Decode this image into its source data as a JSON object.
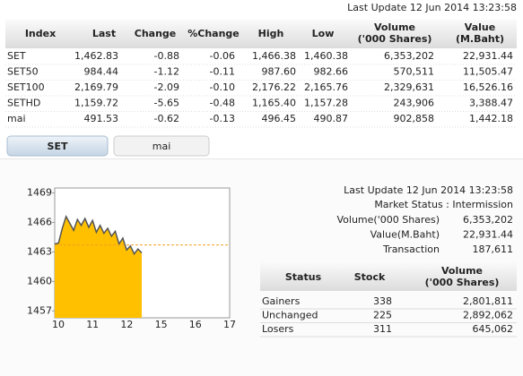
{
  "header": {
    "last_update": "Last Update 12 Jun 2014 13:23:58"
  },
  "table": {
    "columns": [
      [
        "Index"
      ],
      [
        "Last"
      ],
      [
        "Change"
      ],
      [
        "%Change"
      ],
      [
        "High"
      ],
      [
        "Low"
      ],
      [
        "Volume",
        "('000 Shares)"
      ],
      [
        "Value",
        "(M.Baht)"
      ]
    ],
    "rows": [
      [
        "SET",
        "1,462.83",
        "-0.88",
        "-0.06",
        "1,466.38",
        "1,460.38",
        "6,353,202",
        "22,931.44"
      ],
      [
        "SET50",
        "984.44",
        "-1.12",
        "-0.11",
        "987.60",
        "982.66",
        "570,511",
        "11,505.47"
      ],
      [
        "SET100",
        "2,169.79",
        "-2.09",
        "-0.10",
        "2,176.22",
        "2,165.76",
        "2,329,631",
        "16,526.16"
      ],
      [
        "SETHD",
        "1,159.72",
        "-5.65",
        "-0.48",
        "1,165.40",
        "1,157.28",
        "243,906",
        "3,388.47"
      ],
      [
        "mai",
        "491.53",
        "-0.62",
        "-0.13",
        "496.45",
        "490.87",
        "902,858",
        "1,442.18"
      ]
    ]
  },
  "tabs": [
    "SET",
    "mai"
  ],
  "chart": {
    "type": "area",
    "color": "#ffc000",
    "line_color": "#555555",
    "values": [
      1463.8,
      1463.9,
      1465.4,
      1466.6,
      1465.9,
      1465.2,
      1466.3,
      1465.7,
      1466.4,
      1465.5,
      1466.2,
      1465.0,
      1465.7,
      1464.9,
      1465.4,
      1464.6,
      1465.1,
      1463.8,
      1464.4,
      1463.2,
      1463.6,
      1462.8,
      1463.3,
      1462.9
    ],
    "previous_close": 1463.71,
    "ylim": [
      1456.3,
      1469.5
    ],
    "yticks": [
      1469,
      1466,
      1463,
      1460,
      1457
    ],
    "xtick_labels": [
      "10",
      "11",
      "12",
      "15",
      "16",
      "17"
    ]
  },
  "summary": {
    "last_update": "Last Update 12 Jun 2014 13:23:58",
    "market_status": "Market Status : Intermission",
    "lines": [
      [
        "Volume('000 Shares)",
        "6,353,202"
      ],
      [
        "Value(M.Baht)",
        "22,931.44"
      ],
      [
        "Transaction",
        "187,611"
      ]
    ]
  },
  "status_table": {
    "columns": [
      [
        "Status"
      ],
      [
        "Stock"
      ],
      [
        "Volume",
        "('000 Shares)"
      ]
    ],
    "rows": [
      [
        "Gainers",
        "338",
        "2,801,811"
      ],
      [
        "Unchanged",
        "225",
        "2,892,062"
      ],
      [
        "Losers",
        "311",
        "645,062"
      ]
    ]
  }
}
